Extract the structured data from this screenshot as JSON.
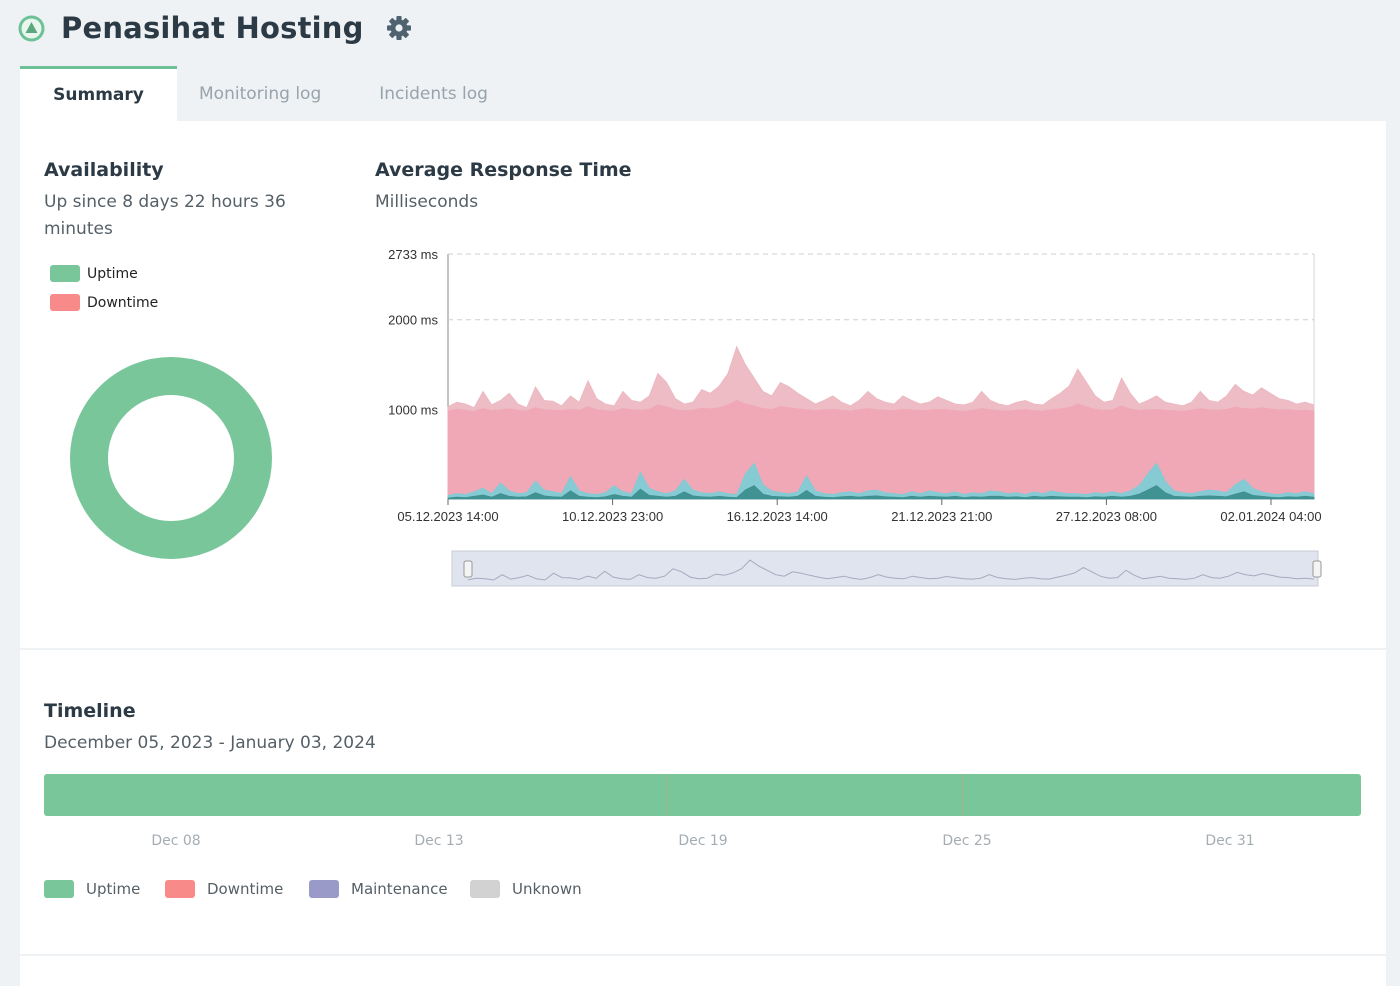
{
  "header": {
    "title": "Penasihat Hosting",
    "status_color": "#6cc196",
    "status_icon": "up-arrow-icon",
    "settings_icon": "gear-icon"
  },
  "tabs": [
    {
      "label": "Summary",
      "active": true
    },
    {
      "label": "Monitoring log",
      "active": false
    },
    {
      "label": "Incidents log",
      "active": false
    }
  ],
  "availability": {
    "title": "Availability",
    "subtitle_line1": "Up since 8 days 22 hours 36",
    "subtitle_line2": "minutes",
    "legend": [
      {
        "label": "Uptime",
        "color": "#78c69a"
      },
      {
        "label": "Downtime",
        "color": "#f98a8a"
      }
    ]
  },
  "response_time": {
    "title": "Average Response Time",
    "subtitle": "Milliseconds"
  },
  "chart_data": [
    {
      "type": "pie",
      "title": "",
      "categories": [
        "Uptime",
        "Downtime"
      ],
      "values": [
        100,
        0
      ],
      "colors": [
        "#78c69a",
        "#f98a8a"
      ]
    },
    {
      "type": "area",
      "title": "",
      "ylabel": "",
      "ylim": [
        0,
        2733
      ],
      "y_ticks": [
        "1000 ms",
        "2000 ms",
        "2733 ms"
      ],
      "x_ticks": [
        "05.12.2023 14:00",
        "10.12.2023 23:00",
        "16.12.2023 14:00",
        "21.12.2023 21:00",
        "27.12.2023 08:00",
        "02.01.2024 04:00"
      ],
      "grid": true,
      "series": [
        {
          "color": "#ecb8c2",
          "values": [
            1030,
            1080,
            1060,
            1020,
            1200,
            1050,
            1100,
            1180,
            1060,
            1020,
            1250,
            1100,
            1090,
            1040,
            1150,
            1080,
            1320,
            1120,
            1060,
            1040,
            1200,
            1100,
            1080,
            1150,
            1400,
            1300,
            1120,
            1060,
            1080,
            1220,
            1180,
            1260,
            1400,
            1700,
            1500,
            1350,
            1200,
            1150,
            1300,
            1250,
            1180,
            1120,
            1060,
            1100,
            1150,
            1080,
            1040,
            1100,
            1200,
            1120,
            1080,
            1060,
            1150,
            1100,
            1060,
            1080,
            1140,
            1100,
            1060,
            1050,
            1080,
            1200,
            1100,
            1060,
            1040,
            1080,
            1100,
            1060,
            1050,
            1120,
            1180,
            1260,
            1450,
            1300,
            1150,
            1080,
            1100,
            1350,
            1180,
            1060,
            1100,
            1150,
            1080,
            1060,
            1040,
            1080,
            1200,
            1100,
            1080,
            1150,
            1280,
            1200,
            1160,
            1240,
            1180,
            1120,
            1100,
            1060,
            1080,
            1050
          ]
        },
        {
          "color": "#f0a7b6",
          "values": [
            980,
            1000,
            990,
            975,
            1010,
            985,
            995,
            1005,
            990,
            980,
            1020,
            995,
            990,
            985,
            1000,
            990,
            1030,
            995,
            985,
            980,
            1010,
            995,
            990,
            1000,
            1050,
            1030,
            995,
            985,
            990,
            1015,
            1005,
            1020,
            1050,
            1100,
            1060,
            1035,
            1010,
            1000,
            1030,
            1020,
            1005,
            995,
            985,
            995,
            1000,
            990,
            980,
            995,
            1010,
            995,
            990,
            985,
            1000,
            995,
            985,
            990,
            1000,
            995,
            985,
            980,
            990,
            1010,
            995,
            985,
            980,
            990,
            995,
            985,
            980,
            995,
            1005,
            1020,
            1060,
            1030,
            1000,
            990,
            995,
            1040,
            1005,
            985,
            995,
            1000,
            990,
            985,
            980,
            990,
            1010,
            995,
            990,
            1000,
            1025,
            1010,
            1002,
            1018,
            1005,
            995,
            995,
            985,
            990,
            980
          ]
        },
        {
          "color": "#7fcbd5",
          "values": [
            40,
            60,
            50,
            80,
            120,
            60,
            180,
            90,
            60,
            70,
            200,
            100,
            80,
            60,
            250,
            90,
            60,
            50,
            70,
            150,
            80,
            60,
            300,
            120,
            80,
            60,
            90,
            220,
            100,
            70,
            60,
            80,
            60,
            50,
            280,
            400,
            160,
            90,
            70,
            60,
            80,
            260,
            90,
            60,
            50,
            70,
            80,
            60,
            90,
            100,
            70,
            60,
            50,
            80,
            60,
            90,
            70,
            60,
            80,
            50,
            70,
            60,
            90,
            80,
            60,
            70,
            50,
            80,
            60,
            90,
            70,
            60,
            60,
            50,
            70,
            60,
            80,
            60,
            90,
            150,
            280,
            400,
            200,
            90,
            70,
            60,
            80,
            100,
            90,
            70,
            160,
            220,
            120,
            80,
            60,
            50,
            70,
            60,
            80,
            60
          ]
        },
        {
          "color": "#3d8f8f",
          "values": [
            10,
            20,
            15,
            30,
            45,
            20,
            60,
            30,
            20,
            25,
            70,
            35,
            25,
            20,
            90,
            30,
            20,
            15,
            25,
            50,
            30,
            20,
            110,
            40,
            30,
            20,
            30,
            80,
            35,
            25,
            20,
            30,
            20,
            15,
            100,
            150,
            55,
            30,
            25,
            20,
            30,
            95,
            30,
            20,
            15,
            25,
            30,
            20,
            30,
            35,
            25,
            20,
            15,
            30,
            20,
            30,
            25,
            20,
            30,
            15,
            25,
            20,
            30,
            30,
            20,
            25,
            15,
            30,
            20,
            30,
            25,
            20,
            20,
            15,
            25,
            20,
            30,
            20,
            30,
            55,
            100,
            150,
            70,
            30,
            25,
            20,
            30,
            35,
            30,
            25,
            55,
            80,
            40,
            30,
            20,
            15,
            25,
            20,
            30,
            20
          ]
        }
      ]
    }
  ],
  "timeline": {
    "title": "Timeline",
    "range": "December 05, 2023 - January 03, 2024",
    "bar_color": "#78c69a",
    "ticks": [
      "Dec 08",
      "Dec 13",
      "Dec 19",
      "Dec 25",
      "Dec 31"
    ],
    "legend": [
      {
        "label": "Uptime",
        "color": "#78c69a"
      },
      {
        "label": "Downtime",
        "color": "#f98a8a"
      },
      {
        "label": "Maintenance",
        "color": "#9a9ac8"
      },
      {
        "label": "Unknown",
        "color": "#d2d2d2"
      }
    ]
  }
}
